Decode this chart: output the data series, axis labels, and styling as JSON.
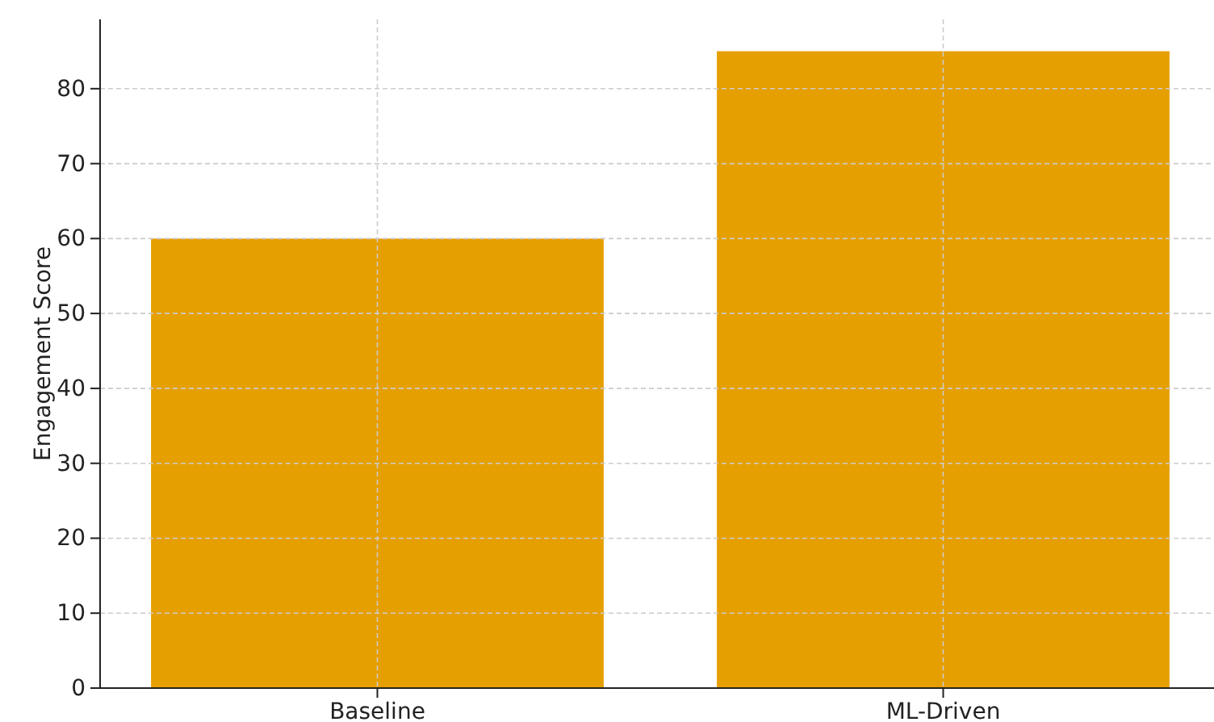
{
  "chart_data": {
    "type": "bar",
    "ylabel": "Engagement Score",
    "categories": [
      "Baseline",
      "ML-Driven"
    ],
    "values": [
      60,
      85
    ],
    "color": "#e69f00",
    "ylim": [
      0,
      89.25
    ],
    "yticks": [
      0,
      10,
      20,
      30,
      40,
      50,
      60,
      70,
      80
    ],
    "grid": true
  }
}
